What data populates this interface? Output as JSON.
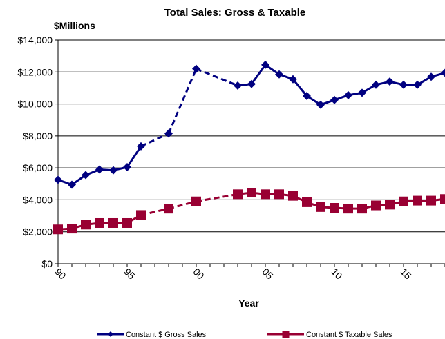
{
  "chart_data": {
    "type": "line",
    "title": "Total Sales: Gross & Taxable",
    "unit_label": "$Millions",
    "xlabel": "Year",
    "ylabel": "",
    "xlim": [
      1990,
      2018
    ],
    "ylim": [
      0,
      14000
    ],
    "y_ticks": [
      0,
      2000,
      4000,
      6000,
      8000,
      10000,
      12000,
      14000
    ],
    "y_tick_labels": [
      "$0",
      "$2,000",
      "$4,000",
      "$6,000",
      "$8,000",
      "$10,000",
      "$12,000",
      "$14,000"
    ],
    "x_ticks": [
      1990,
      1995,
      2000,
      2005,
      2010,
      2015
    ],
    "x_tick_labels": [
      "90",
      "95",
      "00",
      "05",
      "10",
      "15"
    ],
    "grid": "horizontal",
    "legend_position": "bottom",
    "series": [
      {
        "name": "Constant $ Gross Sales",
        "color": "#000080",
        "marker": "diamond",
        "points": [
          [
            1990,
            5250
          ],
          [
            1991,
            4950
          ],
          [
            1992,
            5550
          ],
          [
            1993,
            5900
          ],
          [
            1994,
            5850
          ],
          [
            1995,
            6050
          ],
          [
            1996,
            7350
          ],
          [
            1998,
            8150
          ],
          [
            2000,
            12200
          ],
          [
            2003,
            11150
          ],
          [
            2004,
            11250
          ],
          [
            2005,
            12450
          ],
          [
            2006,
            11850
          ],
          [
            2007,
            11550
          ],
          [
            2008,
            10500
          ],
          [
            2009,
            9950
          ],
          [
            2010,
            10250
          ],
          [
            2011,
            10550
          ],
          [
            2012,
            10700
          ],
          [
            2013,
            11200
          ],
          [
            2014,
            11400
          ],
          [
            2015,
            11200
          ],
          [
            2016,
            11200
          ],
          [
            2017,
            11700
          ],
          [
            2018,
            11950
          ]
        ]
      },
      {
        "name": "Constant $ Taxable Sales",
        "color": "#990033",
        "marker": "square",
        "points": [
          [
            1990,
            2150
          ],
          [
            1991,
            2200
          ],
          [
            1992,
            2450
          ],
          [
            1993,
            2550
          ],
          [
            1994,
            2550
          ],
          [
            1995,
            2550
          ],
          [
            1996,
            3050
          ],
          [
            1998,
            3450
          ],
          [
            2000,
            3900
          ],
          [
            2003,
            4350
          ],
          [
            2004,
            4450
          ],
          [
            2005,
            4350
          ],
          [
            2006,
            4350
          ],
          [
            2007,
            4250
          ],
          [
            2008,
            3850
          ],
          [
            2009,
            3550
          ],
          [
            2010,
            3500
          ],
          [
            2011,
            3450
          ],
          [
            2012,
            3450
          ],
          [
            2013,
            3650
          ],
          [
            2014,
            3700
          ],
          [
            2015,
            3900
          ],
          [
            2016,
            3950
          ],
          [
            2017,
            3950
          ],
          [
            2018,
            4050
          ]
        ]
      }
    ]
  }
}
